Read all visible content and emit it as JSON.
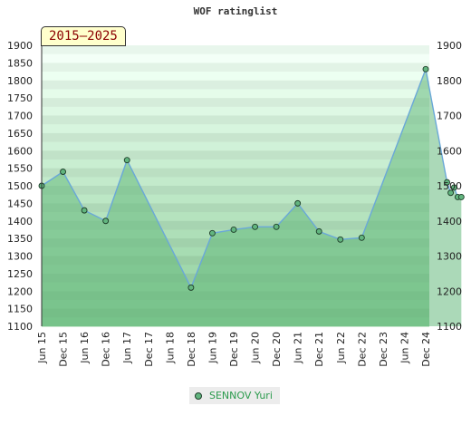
{
  "chart_data": {
    "type": "area",
    "title": "WOF ratinglist",
    "period_label": "2015–2025",
    "x_ticks": [
      "Jun 15",
      "Dec 15",
      "Jun 16",
      "Dec 16",
      "Jun 17",
      "Dec 17",
      "Jun 18",
      "Dec 18",
      "Jun 19",
      "Dec 19",
      "Jun 20",
      "Dec 20",
      "Jun 21",
      "Dec 21",
      "Jun 22",
      "Dec 22",
      "Dec 23",
      "Jun 24",
      "Dec 24"
    ],
    "y_ticks_left": [
      1100,
      1150,
      1200,
      1250,
      1300,
      1350,
      1400,
      1450,
      1500,
      1550,
      1600,
      1650,
      1700,
      1750,
      1800,
      1850,
      1900
    ],
    "y_ticks_right": [
      1100,
      1200,
      1300,
      1400,
      1500,
      1600,
      1700,
      1800,
      1900
    ],
    "ylim": [
      1100,
      1900
    ],
    "grid": "horizontal bands",
    "legend_position": "bottom-center",
    "series": [
      {
        "name": "SENNOV Yuri",
        "color": "#6aa8d8",
        "fill": "#66b97e",
        "x": [
          "Jun 15",
          "Dec 15",
          "Jun 16",
          "Dec 16",
          "Jun 17",
          "Dec 18",
          "Jun 19",
          "Dec 19",
          "Jun 20",
          "Dec 20",
          "Jun 21",
          "Dec 21",
          "Jun 22",
          "Dec 22",
          "Jun 24",
          "Dec 24",
          "Jan 25",
          "Feb 25",
          "Mar 25",
          "Apr 25"
        ],
        "x_pos": [
          0,
          1,
          2,
          3,
          4,
          7,
          8,
          9,
          10,
          11,
          12,
          13,
          14,
          15,
          18,
          19,
          19.17,
          19.33,
          19.5,
          19.67
        ],
        "values": [
          1500,
          1540,
          1430,
          1400,
          1573,
          1210,
          1365,
          1375,
          1383,
          1383,
          1450,
          1370,
          1347,
          1352,
          1832,
          1510,
          1480,
          1495,
          1468,
          1468
        ]
      }
    ]
  }
}
